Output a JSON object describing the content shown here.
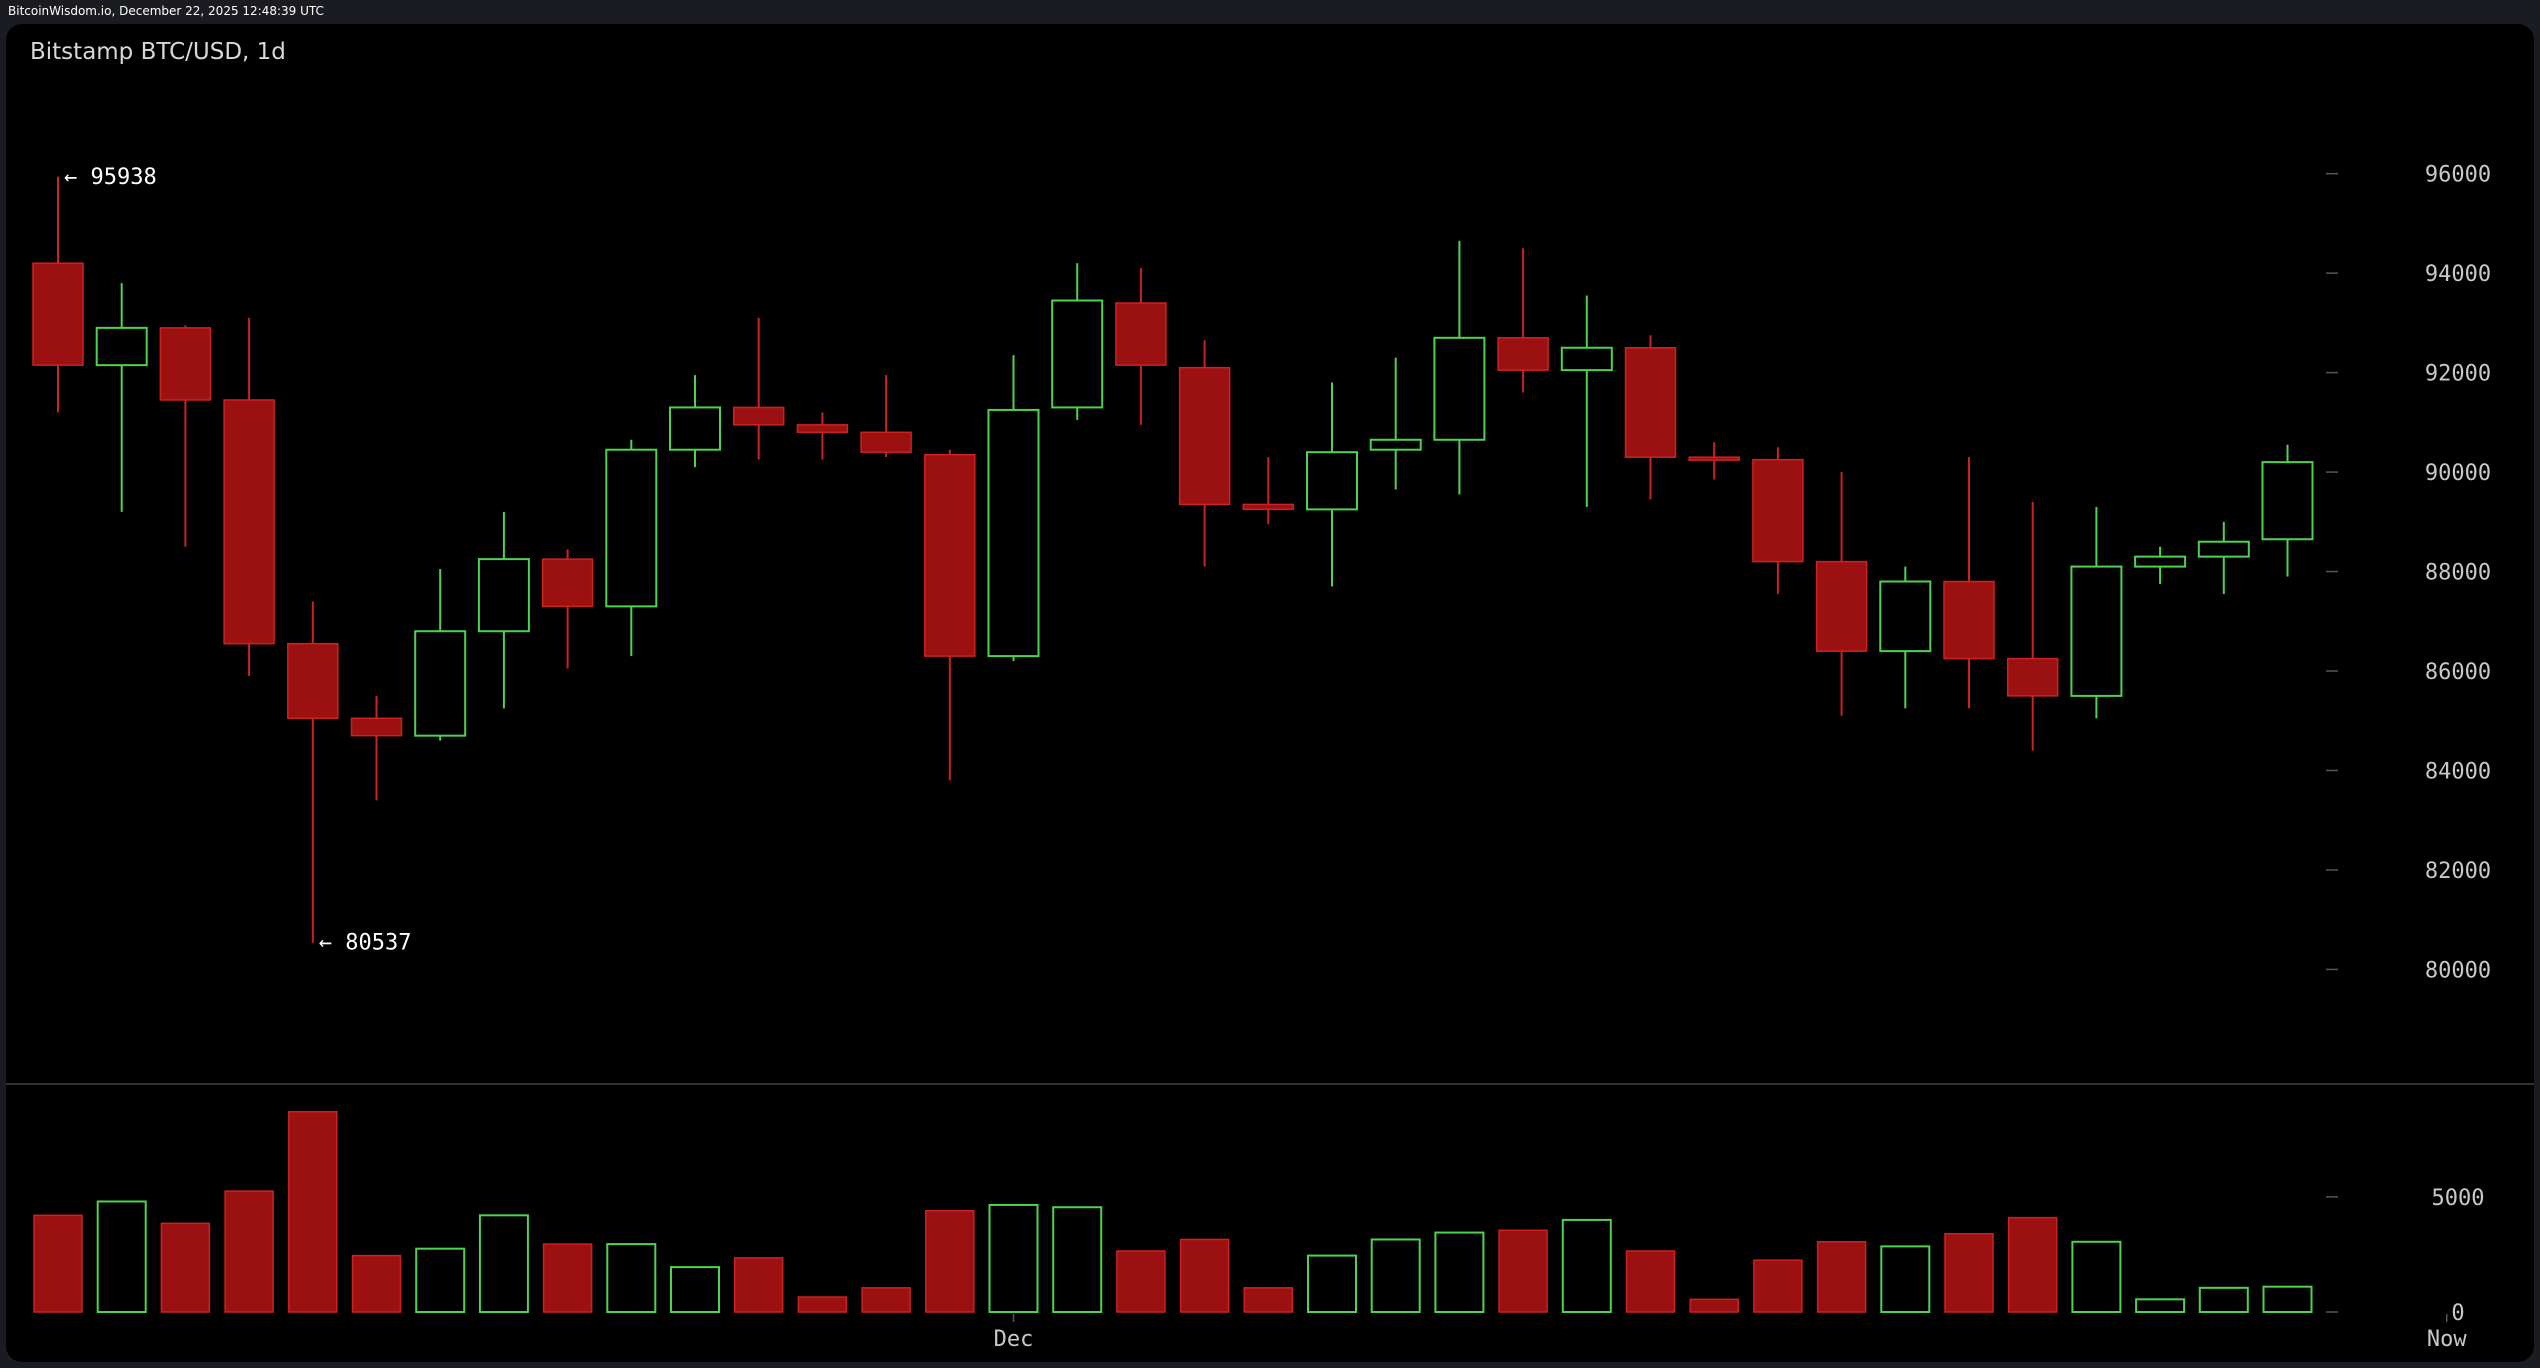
{
  "header": {
    "caption": "BitcoinWisdom.io, December 22, 2025 12:48:39 UTC"
  },
  "chart_data": {
    "type": "candlestick",
    "title": "Bitstamp BTC/USD, 1d",
    "colors": {
      "up": "#4fd24f",
      "down": "#9b1111",
      "down_wick": "#cc2222",
      "grid_tick": "#555555",
      "text": "#c8c8c8",
      "divider": "#444444"
    },
    "price_axis": {
      "ticks": [
        "96000",
        "94000",
        "92000",
        "90000",
        "88000",
        "86000",
        "84000",
        "82000",
        "80000"
      ],
      "range": [
        78400,
        97200
      ]
    },
    "volume_axis": {
      "ticks": [
        "5000",
        "0"
      ],
      "range": [
        0,
        8600
      ]
    },
    "x_axis": {
      "labels": [
        {
          "text": "Dec",
          "index": 15
        },
        {
          "text": "Now",
          "index": 37.5
        }
      ]
    },
    "annotations": [
      {
        "label": "← 95938",
        "value": 95938,
        "index": 0
      },
      {
        "label": "← 80537",
        "value": 80537,
        "index": 4
      }
    ],
    "candles": [
      {
        "o": 94200,
        "h": 95938,
        "l": 91200,
        "c": 92150,
        "v": 4200
      },
      {
        "o": 92150,
        "h": 93800,
        "l": 89200,
        "c": 92900,
        "v": 4800
      },
      {
        "o": 92900,
        "h": 92950,
        "l": 88500,
        "c": 91450,
        "v": 3850
      },
      {
        "o": 91450,
        "h": 93100,
        "l": 85900,
        "c": 86550,
        "v": 5250
      },
      {
        "o": 86550,
        "h": 87400,
        "l": 80537,
        "c": 85050,
        "v": 8700
      },
      {
        "o": 85050,
        "h": 85500,
        "l": 83400,
        "c": 84700,
        "v": 2450
      },
      {
        "o": 84700,
        "h": 88050,
        "l": 84600,
        "c": 86800,
        "v": 2750
      },
      {
        "o": 86800,
        "h": 89200,
        "l": 85250,
        "c": 88250,
        "v": 4200
      },
      {
        "o": 88250,
        "h": 88450,
        "l": 86050,
        "c": 87300,
        "v": 2950
      },
      {
        "o": 87300,
        "h": 90650,
        "l": 86300,
        "c": 90450,
        "v": 2950
      },
      {
        "o": 90450,
        "h": 91950,
        "l": 90100,
        "c": 91300,
        "v": 1950
      },
      {
        "o": 91300,
        "h": 93100,
        "l": 90250,
        "c": 90950,
        "v": 2350
      },
      {
        "o": 90950,
        "h": 91200,
        "l": 90250,
        "c": 90800,
        "v": 650
      },
      {
        "o": 90800,
        "h": 91950,
        "l": 90300,
        "c": 90400,
        "v": 1050
      },
      {
        "o": 90350,
        "h": 90450,
        "l": 83800,
        "c": 86300,
        "v": 4400
      },
      {
        "o": 86300,
        "h": 92350,
        "l": 86200,
        "c": 91250,
        "v": 4650
      },
      {
        "o": 91300,
        "h": 94200,
        "l": 91050,
        "c": 93450,
        "v": 4550
      },
      {
        "o": 93400,
        "h": 94100,
        "l": 90950,
        "c": 92150,
        "v": 2650
      },
      {
        "o": 92100,
        "h": 92650,
        "l": 88100,
        "c": 89350,
        "v": 3150
      },
      {
        "o": 89350,
        "h": 90300,
        "l": 88950,
        "c": 89250,
        "v": 1050
      },
      {
        "o": 89250,
        "h": 91800,
        "l": 87700,
        "c": 90400,
        "v": 2450
      },
      {
        "o": 90450,
        "h": 92300,
        "l": 89650,
        "c": 90650,
        "v": 3150
      },
      {
        "o": 90650,
        "h": 94650,
        "l": 89550,
        "c": 92700,
        "v": 3450
      },
      {
        "o": 92700,
        "h": 94500,
        "l": 91600,
        "c": 92050,
        "v": 3550
      },
      {
        "o": 92050,
        "h": 93550,
        "l": 89300,
        "c": 92500,
        "v": 4000
      },
      {
        "o": 92500,
        "h": 92750,
        "l": 89450,
        "c": 90300,
        "v": 2650
      },
      {
        "o": 90300,
        "h": 90600,
        "l": 89850,
        "c": 90250,
        "v": 550
      },
      {
        "o": 90250,
        "h": 90500,
        "l": 87550,
        "c": 88200,
        "v": 2250
      },
      {
        "o": 88200,
        "h": 90000,
        "l": 85100,
        "c": 86400,
        "v": 3050
      },
      {
        "o": 86400,
        "h": 88100,
        "l": 85250,
        "c": 87800,
        "v": 2850
      },
      {
        "o": 87800,
        "h": 90300,
        "l": 85250,
        "c": 86250,
        "v": 3400
      },
      {
        "o": 86250,
        "h": 89400,
        "l": 84400,
        "c": 85500,
        "v": 4100
      },
      {
        "o": 85500,
        "h": 89300,
        "l": 85050,
        "c": 88100,
        "v": 3050
      },
      {
        "o": 88100,
        "h": 88500,
        "l": 87750,
        "c": 88300,
        "v": 550
      },
      {
        "o": 88300,
        "h": 89000,
        "l": 87550,
        "c": 88600,
        "v": 1050
      },
      {
        "o": 88650,
        "h": 90550,
        "l": 87900,
        "c": 90200,
        "v": 1100
      }
    ]
  }
}
